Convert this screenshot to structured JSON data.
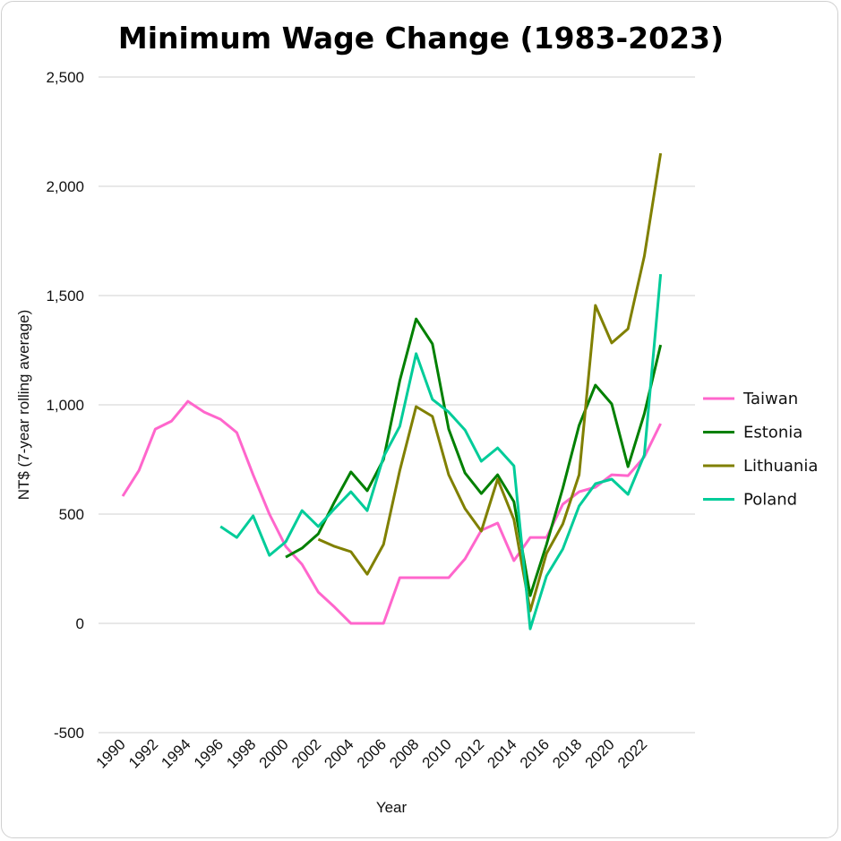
{
  "chart_data": {
    "type": "line",
    "title": "Minimum Wage Change (1983-2023)",
    "xlabel": "Year",
    "ylabel": "NT$ (7-year rolling average)",
    "ylim": [
      -500,
      2500
    ],
    "yticks": [
      -500,
      0,
      500,
      1000,
      1500,
      2000,
      2500
    ],
    "ytick_labels": [
      "-500",
      "0",
      "500",
      "1,000",
      "1,500",
      "2,000",
      "2,500"
    ],
    "xlim": [
      1990,
      2023
    ],
    "xtick_labels": [
      "1990",
      "1992",
      "1994",
      "1996",
      "1998",
      "2000",
      "2002",
      "2004",
      "2006",
      "2008",
      "2010",
      "2012",
      "2014",
      "2016",
      "2018",
      "2020",
      "2022"
    ],
    "grid": true,
    "legend_position": "right",
    "series": [
      {
        "name": "Taiwan",
        "color": "#FF66CC",
        "start_year": 1990,
        "values": [
          582,
          700,
          889,
          926,
          1016,
          967,
          934,
          873,
          680,
          500,
          352,
          270,
          143,
          74,
          0,
          0,
          0,
          209,
          209,
          209,
          209,
          295,
          426,
          459,
          287,
          393,
          393,
          545,
          602,
          623,
          680,
          676,
          762,
          914
        ]
      },
      {
        "name": "Estonia",
        "color": "#008000",
        "start_year": 2000,
        "values": [
          303,
          344,
          410,
          557,
          693,
          607,
          750,
          1111,
          1393,
          1279,
          889,
          688,
          594,
          680,
          557,
          127,
          361,
          619,
          906,
          1090,
          1004,
          717,
          959,
          1274
        ]
      },
      {
        "name": "Lithuania",
        "color": "#808000",
        "start_year": 2002,
        "values": [
          385,
          352,
          328,
          225,
          361,
          700,
          992,
          947,
          680,
          525,
          422,
          660,
          475,
          57,
          320,
          455,
          680,
          1455,
          1283,
          1348,
          1680,
          2151
        ]
      },
      {
        "name": "Poland",
        "color": "#00CC99",
        "start_year": 1996,
        "values": [
          443,
          393,
          492,
          311,
          373,
          516,
          443,
          525,
          602,
          516,
          762,
          902,
          1234,
          1025,
          967,
          885,
          742,
          803,
          721,
          -25,
          217,
          340,
          537,
          639,
          660,
          590,
          770,
          1598
        ]
      }
    ]
  }
}
